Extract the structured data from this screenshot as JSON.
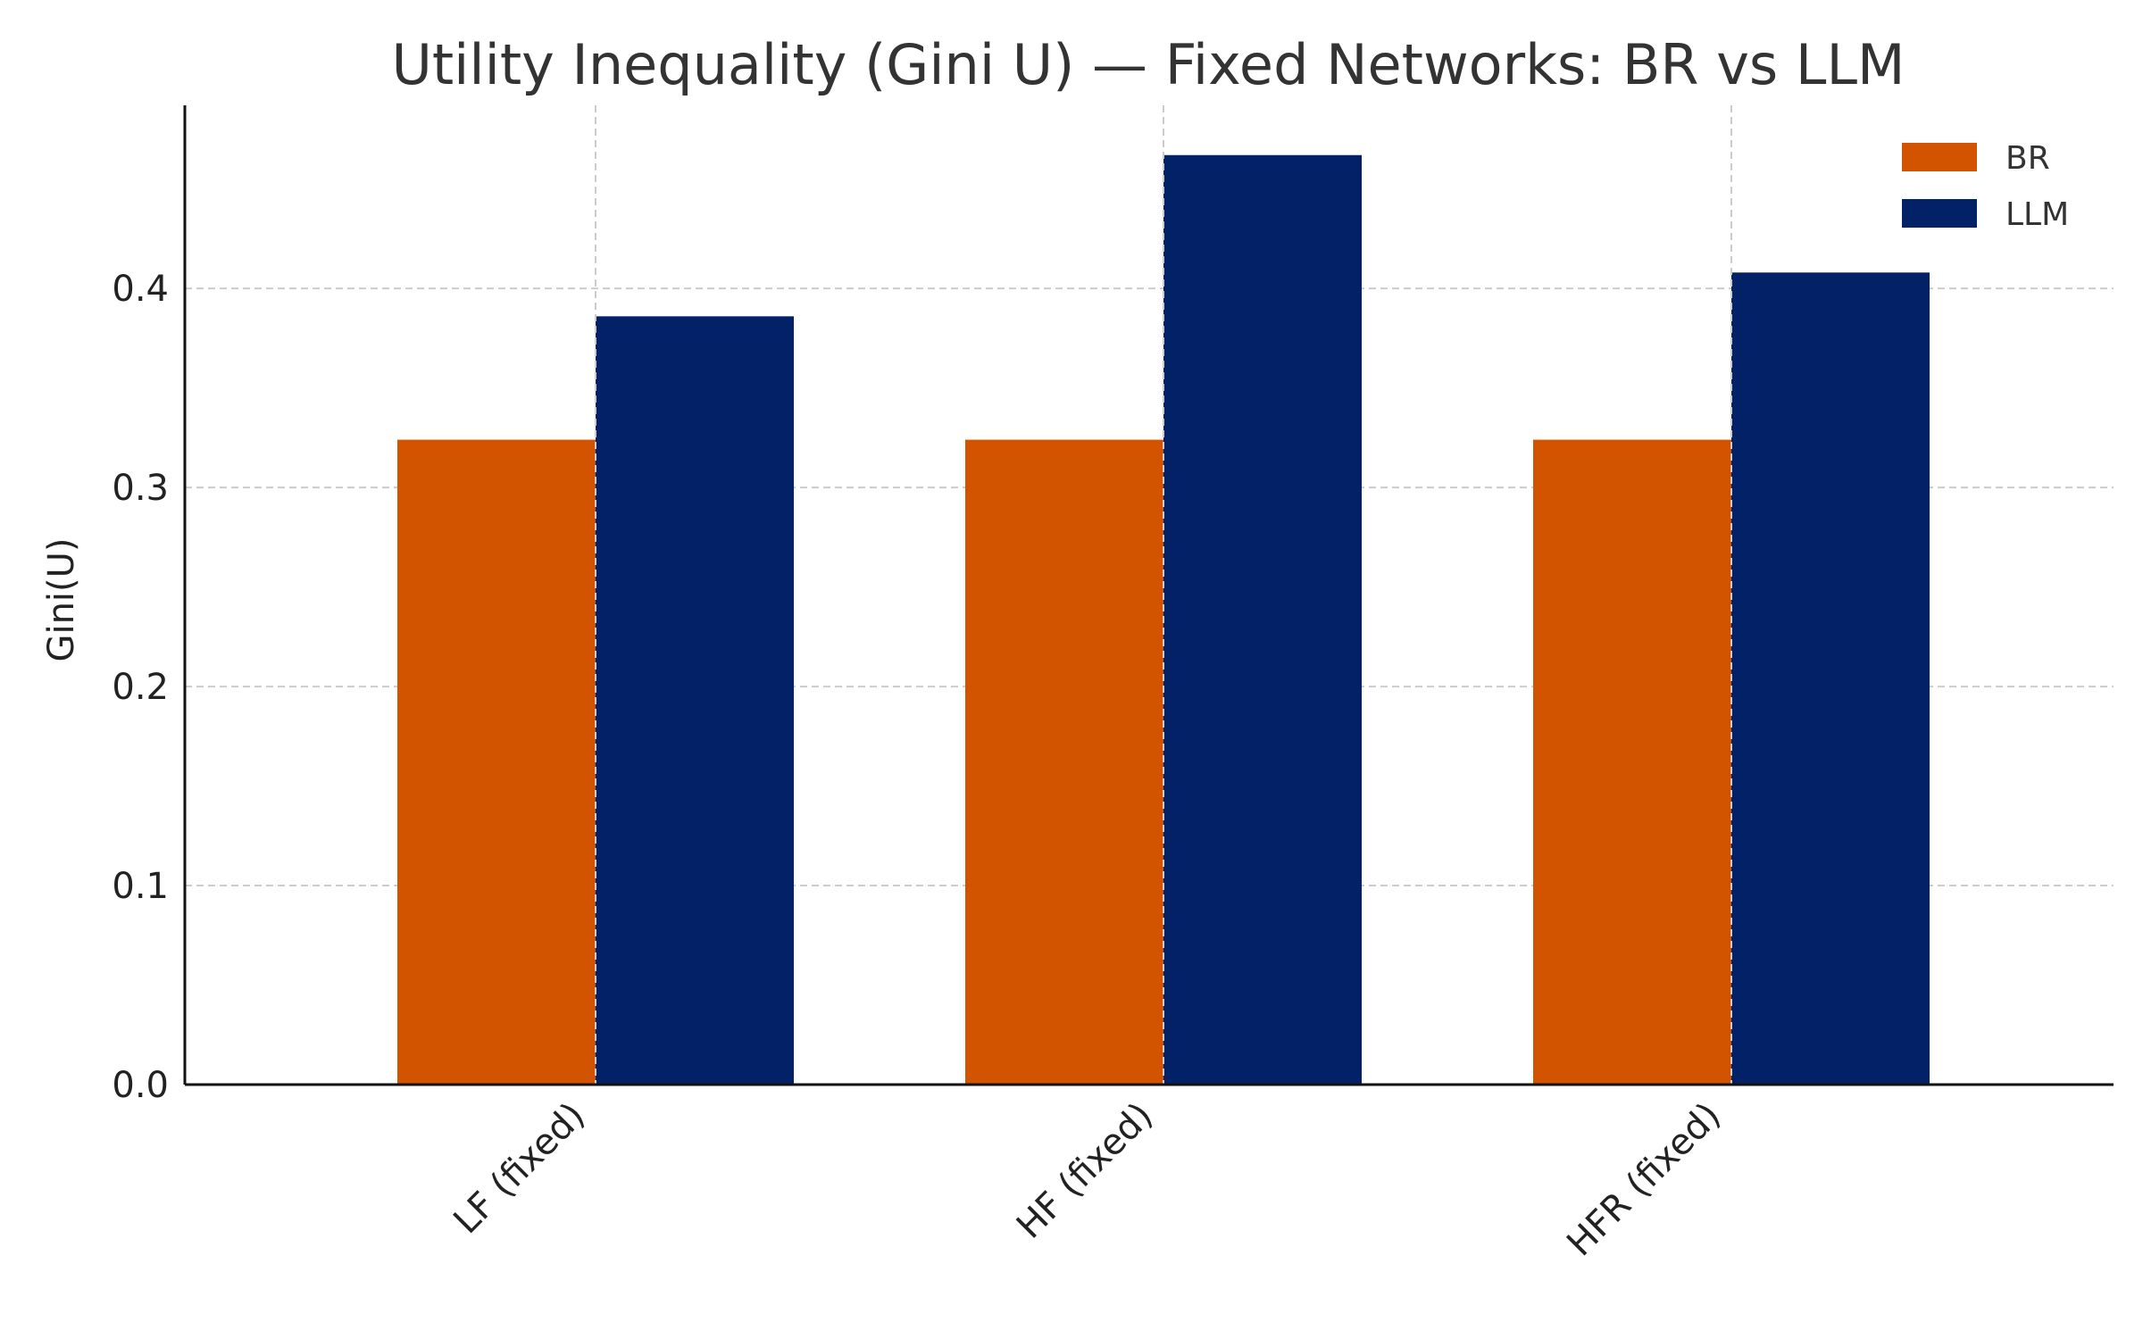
{
  "chart_data": {
    "type": "bar",
    "title": "Utility Inequality (Gini U) — Fixed Networks: BR vs LLM",
    "xlabel": "",
    "ylabel": "Gini(U)",
    "categories": [
      "LF (fixed)",
      "HF (fixed)",
      "HFR (fixed)"
    ],
    "series": [
      {
        "name": "BR",
        "color": "#d35400",
        "values": [
          0.324,
          0.324,
          0.324
        ]
      },
      {
        "name": "LLM",
        "color": "#022166",
        "values": [
          0.386,
          0.467,
          0.408
        ]
      }
    ],
    "ylim": [
      0,
      0.492
    ],
    "yticks": [
      0.0,
      0.1,
      0.2,
      0.3,
      0.4
    ],
    "ytick_labels": [
      "0.0",
      "0.1",
      "0.2",
      "0.3",
      "0.4"
    ],
    "grid": true,
    "legend_position": "top-right"
  }
}
